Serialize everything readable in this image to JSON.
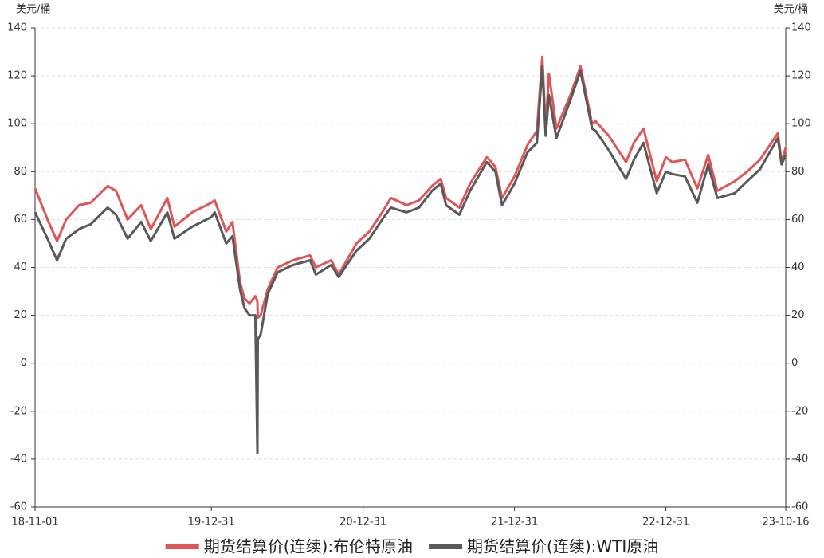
{
  "chart_data": {
    "type": "line",
    "y_unit": "美元/桶",
    "y2_unit": "美元/桶",
    "x": [
      "18-11-01",
      "18-12-01",
      "18-12-24",
      "19-01-15",
      "19-02-15",
      "19-03-15",
      "19-04-25",
      "19-05-15",
      "19-06-12",
      "19-07-15",
      "19-08-07",
      "19-09-16",
      "19-10-03",
      "19-11-15",
      "19-12-31",
      "20-01-08",
      "20-02-05",
      "20-02-20",
      "20-03-09",
      "20-03-20",
      "20-04-01",
      "20-04-15",
      "20-04-20",
      "20-04-21",
      "20-04-28",
      "20-05-15",
      "20-06-08",
      "20-07-15",
      "20-08-25",
      "20-09-08",
      "20-10-15",
      "20-11-02",
      "20-12-15",
      "21-01-15",
      "21-02-15",
      "21-03-08",
      "21-04-15",
      "21-05-15",
      "21-06-15",
      "21-07-06",
      "21-07-19",
      "21-08-20",
      "21-09-15",
      "21-10-25",
      "21-11-15",
      "21-12-01",
      "21-12-31",
      "22-01-31",
      "22-02-23",
      "22-03-08",
      "22-03-16",
      "22-03-24",
      "22-04-11",
      "22-05-15",
      "22-06-08",
      "22-07-06",
      "22-07-15",
      "22-08-15",
      "22-09-26",
      "22-10-15",
      "22-11-07",
      "22-12-09",
      "22-12-31",
      "23-01-15",
      "23-02-15",
      "23-03-17",
      "23-04-12",
      "23-05-04",
      "23-06-15",
      "23-07-15",
      "23-08-15",
      "23-09-27",
      "23-10-06",
      "23-10-16"
    ],
    "series": [
      {
        "name": "期货结算价(连续):布伦特原油",
        "color": "#e05555",
        "values": [
          73,
          60,
          51,
          60,
          66,
          67,
          74,
          72,
          60,
          66,
          56,
          69,
          57,
          63,
          67,
          68,
          55,
          59,
          34,
          27,
          25,
          28,
          26,
          19,
          20,
          31,
          40,
          43,
          45,
          40,
          43,
          37,
          50,
          55,
          63,
          69,
          66,
          68,
          74,
          77,
          69,
          65,
          75,
          86,
          82,
          69,
          78,
          91,
          97,
          128,
          98,
          121,
          98,
          112,
          124,
          100,
          101,
          95,
          84,
          92,
          98,
          76,
          86,
          84,
          85,
          73,
          87,
          72,
          76,
          80,
          85,
          96,
          84,
          90
        ]
      },
      {
        "name": "期货结算价(连续):WTI原油",
        "color": "#595959",
        "values": [
          63,
          52,
          43,
          52,
          56,
          58,
          65,
          62,
          52,
          59,
          51,
          63,
          52,
          57,
          61,
          63,
          50,
          53,
          31,
          23,
          20,
          20,
          -37.6,
          10,
          12,
          29,
          38,
          41,
          43,
          37,
          41,
          36,
          47,
          52,
          60,
          65,
          63,
          65,
          72,
          75,
          66,
          62,
          72,
          84,
          80,
          66,
          75,
          88,
          92,
          124,
          95,
          112,
          94,
          110,
          122,
          98,
          97,
          89,
          77,
          85,
          92,
          71,
          80,
          79,
          78,
          67,
          83,
          69,
          71,
          76,
          81,
          94,
          83,
          87
        ]
      }
    ],
    "xticks": [
      "18-11-01",
      "19-12-31",
      "20-12-31",
      "21-12-31",
      "22-12-31",
      "23-10-16"
    ],
    "ylim": [
      -60,
      140
    ],
    "yticks": [
      -60,
      -40,
      -20,
      0,
      20,
      40,
      60,
      80,
      100,
      120,
      140
    ],
    "y2lim": [
      -60,
      140
    ],
    "y2ticks": [
      -60,
      -40,
      -20,
      0,
      20,
      40,
      60,
      80,
      100,
      120,
      140
    ],
    "grid": true,
    "legend": "bottom"
  }
}
